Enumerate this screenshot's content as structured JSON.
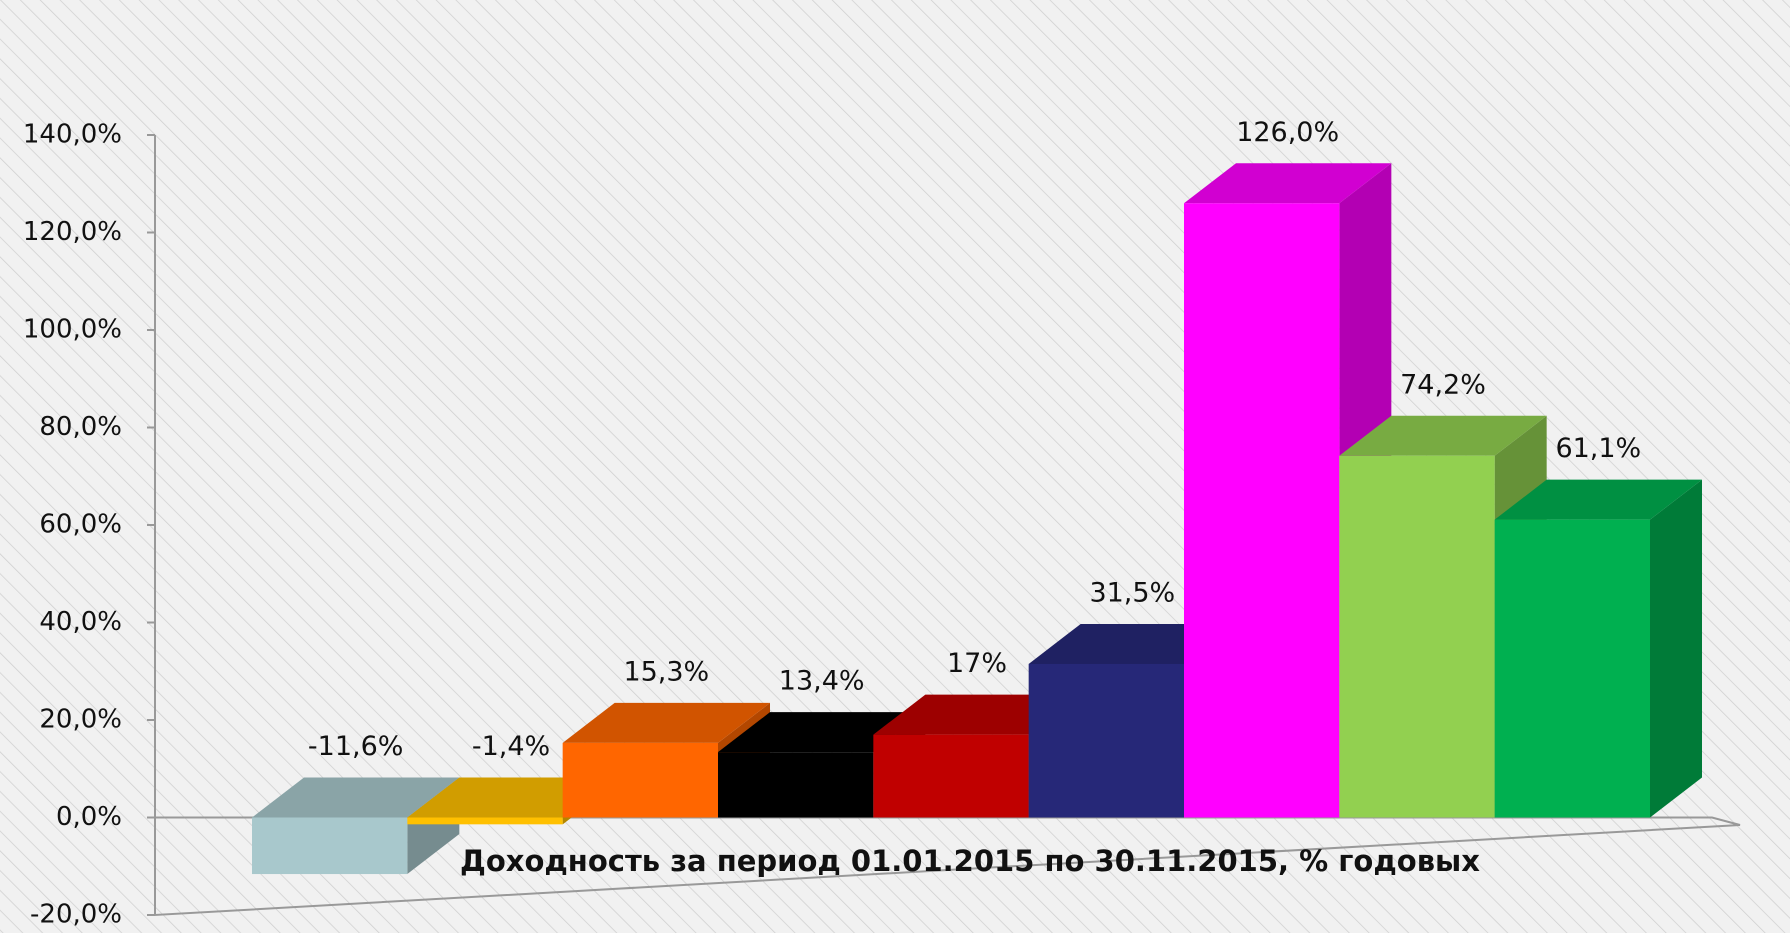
{
  "chart_data": {
    "type": "bar3d",
    "xlabel": "Доходность за период 01.01.2015 по 30.11.2015, % годовых",
    "categories": [
      null,
      null,
      null,
      null,
      null,
      null,
      null,
      null,
      null
    ],
    "values": [
      -11.6,
      -1.4,
      15.3,
      13.4,
      17,
      31.5,
      126.0,
      74.2,
      61.1
    ],
    "value_labels": [
      "-11,6%",
      "-1,4%",
      "15,3%",
      "13,4%",
      "17%",
      "31,5%",
      "126,0%",
      "74,2%",
      "61,1%"
    ],
    "colors": [
      "#a8c8cc",
      "#ffc000",
      "#ff6600",
      "#000000",
      "#c00000",
      "#262878",
      "#ff00ff",
      "#92d050",
      "#00b050"
    ],
    "ylim": [
      -20,
      140
    ],
    "yticks": [
      {
        "value": -20,
        "label": "-20,0%"
      },
      {
        "value": 0,
        "label": "0,0%"
      },
      {
        "value": 20,
        "label": "20,0%"
      },
      {
        "value": 40,
        "label": "40,0%"
      },
      {
        "value": 60,
        "label": "60,0%"
      },
      {
        "value": 80,
        "label": "80,0%"
      },
      {
        "value": 100,
        "label": "100,0%"
      },
      {
        "value": 120,
        "label": "120,0%"
      },
      {
        "value": 140,
        "label": "140,0%"
      }
    ],
    "grid": false
  }
}
